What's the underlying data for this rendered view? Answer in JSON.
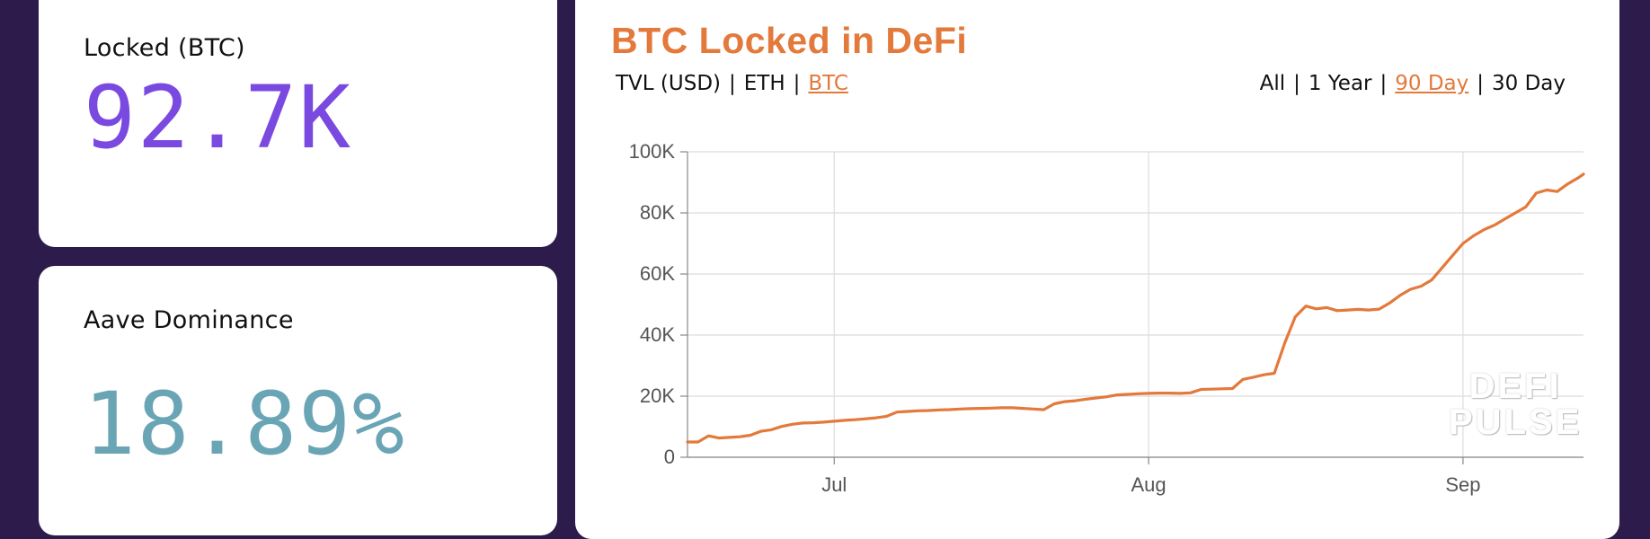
{
  "cards": {
    "locked": {
      "label": "Locked (BTC)",
      "value": "92.7K"
    },
    "dominance": {
      "label": "Aave Dominance",
      "value": "18.89%"
    }
  },
  "colors": {
    "background": "#2c1b4b",
    "accent": "#e3793b",
    "locked_value": "#7a4ae0",
    "dominance_value": "#6aa5b5"
  },
  "chart_panel": {
    "title": "BTC Locked in DeFi",
    "metric_options": [
      "TVL (USD)",
      "ETH",
      "BTC"
    ],
    "metric_active": "BTC",
    "range_options": [
      "All",
      "1 Year",
      "90 Day",
      "30 Day"
    ],
    "range_active": "90 Day",
    "watermark_line1": "DEFI",
    "watermark_line2": "PULSE",
    "icon_watermark": "defi-pulse-logo"
  },
  "chart_data": {
    "type": "line",
    "title": "BTC Locked in DeFi",
    "xlabel": "",
    "ylabel": "",
    "x_ticks": [
      {
        "label": "Jul",
        "day": 14
      },
      {
        "label": "Aug",
        "day": 44
      },
      {
        "label": "Sep",
        "day": 74
      }
    ],
    "y_ticks": [
      "0",
      "20K",
      "40K",
      "60K",
      "80K",
      "100K"
    ],
    "ylim": [
      0,
      100000
    ],
    "xlim_days": [
      0,
      85.5
    ],
    "grid": true,
    "legend": "none",
    "series": [
      {
        "color": "#e3793b",
        "days": [
          0,
          1,
          2,
          3,
          4,
          5,
          6,
          7,
          8,
          9,
          10,
          11,
          12,
          13,
          14,
          15,
          16,
          17,
          18,
          19,
          20,
          21,
          22,
          23,
          24,
          25,
          26,
          27,
          28,
          29,
          30,
          31,
          32,
          33,
          34,
          35,
          36,
          37,
          38,
          39,
          40,
          41,
          42,
          43,
          44,
          45,
          46,
          47,
          48,
          49,
          50,
          51,
          52,
          53,
          54,
          55,
          56,
          57,
          58,
          59,
          60,
          61,
          62,
          63,
          64,
          65,
          66,
          67,
          68,
          69,
          70,
          71,
          72,
          73,
          74,
          75,
          76,
          77,
          78,
          79,
          80,
          81,
          82,
          83,
          84,
          85,
          85.5
        ],
        "values": [
          5000,
          5000,
          7000,
          6300,
          6500,
          6700,
          7200,
          8500,
          9000,
          10100,
          10800,
          11200,
          11300,
          11500,
          11800,
          12100,
          12300,
          12600,
          12900,
          13400,
          14800,
          15000,
          15200,
          15300,
          15500,
          15600,
          15800,
          15900,
          16000,
          16100,
          16200,
          16200,
          16000,
          15800,
          15600,
          17500,
          18200,
          18500,
          19000,
          19400,
          19800,
          20400,
          20600,
          20800,
          20900,
          21000,
          21000,
          20900,
          21100,
          22200,
          22300,
          22400,
          22500,
          25500,
          26200,
          27000,
          27500,
          37500,
          46000,
          49500,
          48600,
          49000,
          48000,
          48200,
          48400,
          48200,
          48500,
          50500,
          53000,
          55000,
          56000,
          58000,
          62000,
          66000,
          70000,
          72500,
          74500,
          76000,
          78000,
          80000,
          82000,
          86500,
          87500,
          87000,
          89500,
          91500,
          92700
        ]
      }
    ]
  }
}
